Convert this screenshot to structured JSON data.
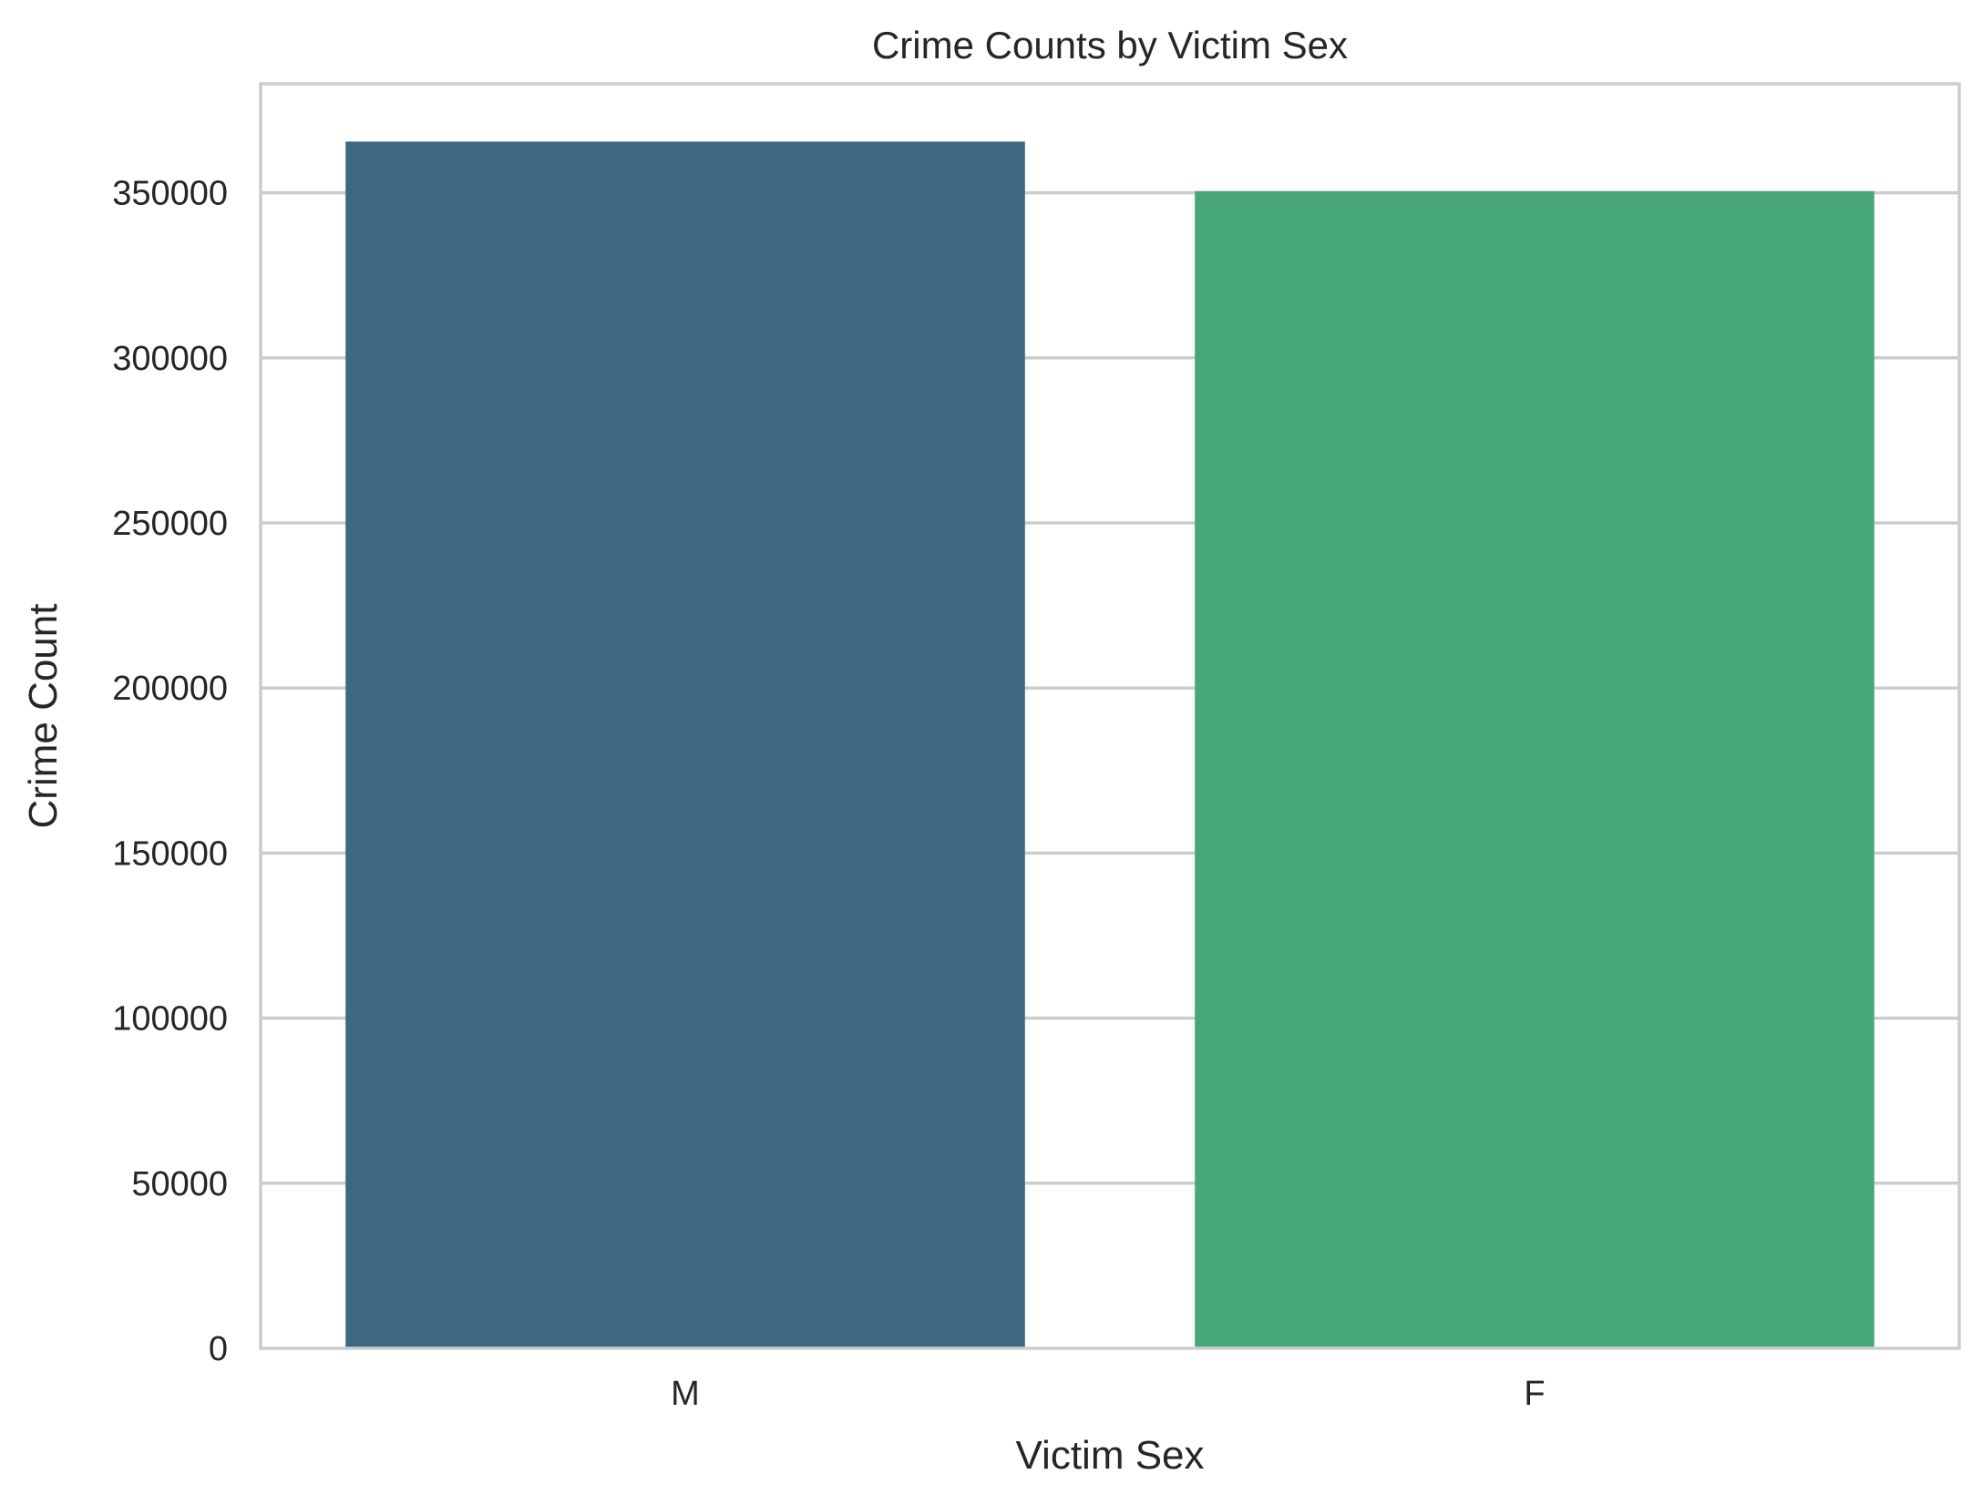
{
  "chart_data": {
    "type": "bar",
    "title": "Crime Counts by Victim Sex",
    "xlabel": "Victim Sex",
    "ylabel": "Crime Count",
    "categories": [
      "M",
      "F"
    ],
    "values": [
      365500,
      350500
    ],
    "colors": [
      "#3f6783",
      "#47a779"
    ],
    "ylim": [
      0,
      383000
    ],
    "yticks": [
      0,
      50000,
      100000,
      150000,
      200000,
      250000,
      300000,
      350000
    ],
    "ytick_labels": [
      "0",
      "50000",
      "100000",
      "150000",
      "200000",
      "250000",
      "300000",
      "350000"
    ],
    "grid": "y",
    "legend": "none"
  }
}
